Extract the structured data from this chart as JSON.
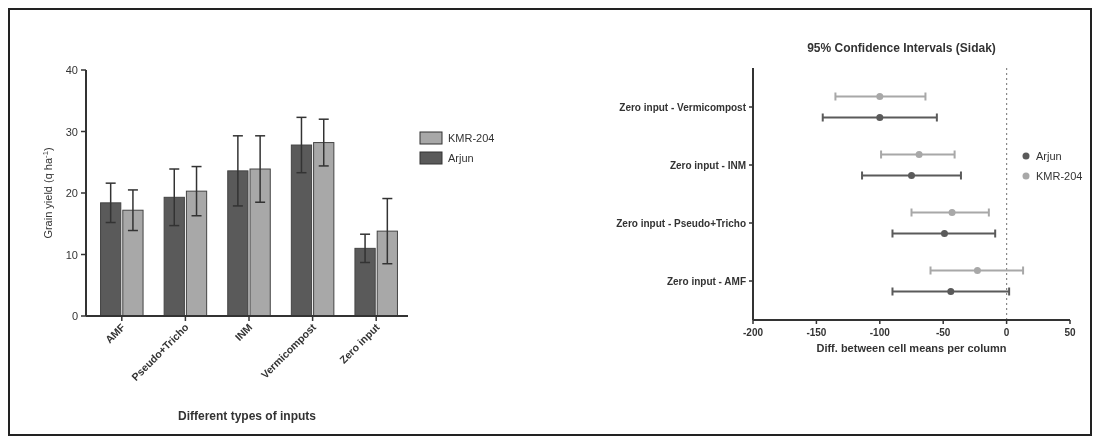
{
  "chart_data": [
    {
      "type": "bar",
      "xlabel": "Different types of inputs",
      "ylabel": "Grain yield (q ha$^{-1}$)",
      "categories": [
        "AMF",
        "Pseudo+Tricho",
        "INM",
        "Vermicompost",
        "Zero input"
      ],
      "series": [
        {
          "name": "Arjun",
          "color": "#5a5a5a",
          "values": [
            18.4,
            19.3,
            23.6,
            27.8,
            11.0
          ],
          "errors": [
            3.2,
            4.6,
            5.7,
            4.5,
            2.3
          ]
        },
        {
          "name": "KMR-204",
          "color": "#a8a8a8",
          "values": [
            17.2,
            20.3,
            23.9,
            28.2,
            13.8
          ],
          "errors": [
            3.3,
            4.0,
            5.4,
            3.8,
            5.3
          ]
        }
      ],
      "ylim": [
        0,
        40
      ],
      "yticks": [
        0,
        10,
        20,
        30,
        40
      ],
      "grid": false,
      "legend": "right"
    },
    {
      "type": "scatter",
      "orientation": "horizontal",
      "title": "95% Confidence Intervals (Sidak)",
      "xlabel": "Diff. between cell means per column",
      "categories": [
        "Zero input - Vermicompost",
        "Zero input - INM",
        "Zero input - Pseudo+Tricho",
        "Zero input - AMF"
      ],
      "series": [
        {
          "name": "Arjun",
          "color": "#5a5a5a",
          "values": [
            -100,
            -75,
            -49,
            -44
          ],
          "errors": [
            [
              -145,
              -55
            ],
            [
              -114,
              -36
            ],
            [
              -90,
              -9
            ],
            [
              -90,
              2
            ]
          ]
        },
        {
          "name": "KMR-204",
          "color": "#a8a8a8",
          "values": [
            -100,
            -69,
            -43,
            -23
          ],
          "errors": [
            [
              -135,
              -64
            ],
            [
              -99,
              -41
            ],
            [
              -75,
              -14
            ],
            [
              -60,
              13
            ]
          ]
        }
      ],
      "xlim": [
        -200,
        50
      ],
      "xticks": [
        -200,
        -150,
        -100,
        -50,
        0,
        50
      ],
      "grid": false,
      "legend": "right",
      "marker": "circle",
      "ref_lines": [
        {
          "axis": "x",
          "value": 0,
          "line_style": "dotted",
          "color": "#888888"
        }
      ]
    }
  ]
}
